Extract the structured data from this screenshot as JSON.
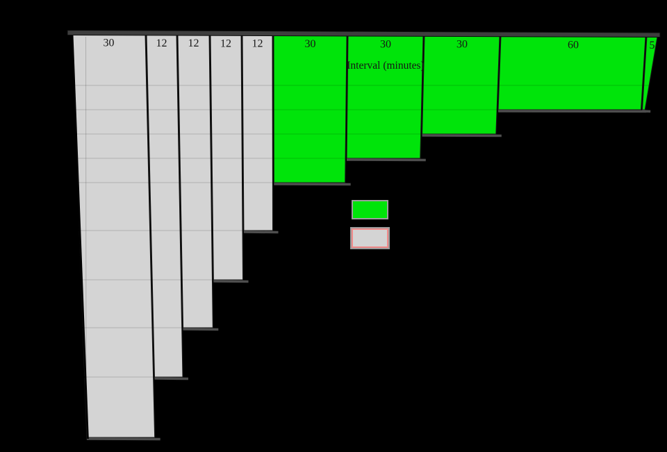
{
  "page": {
    "background_color": "#000000"
  },
  "chart": {
    "axis_label": "Interval (minutes)",
    "bars": [
      {
        "label": "30",
        "interval_minutes": 30,
        "height_units": 16,
        "color_group": "base"
      },
      {
        "label": "12",
        "interval_minutes": 12,
        "height_units": 14,
        "color_group": "base"
      },
      {
        "label": "12",
        "interval_minutes": 12,
        "height_units": 12,
        "color_group": "base"
      },
      {
        "label": "12",
        "interval_minutes": 12,
        "height_units": 10,
        "color_group": "base"
      },
      {
        "label": "12",
        "interval_minutes": 12,
        "height_units": 8,
        "color_group": "base"
      },
      {
        "label": "30",
        "interval_minutes": 30,
        "height_units": 6,
        "color_group": "highlight"
      },
      {
        "label": "30",
        "interval_minutes": 30,
        "height_units": 5,
        "color_group": "highlight"
      },
      {
        "label": "30",
        "interval_minutes": 30,
        "height_units": 4,
        "color_group": "highlight"
      },
      {
        "label": "60",
        "interval_minutes": 60,
        "height_units": 3,
        "color_group": "highlight"
      },
      {
        "label": "5",
        "interval_minutes": 5,
        "height_units": 3,
        "color_group": "highlight",
        "clipped_by_image_edge": true
      }
    ],
    "colors": {
      "highlight": "#00e40a",
      "base": "#d4d4d4",
      "frame": "#3e3e3e",
      "grid": "rgba(0,0,0,0.13)",
      "text": "#161616",
      "axis_line": "#000000",
      "shadow": "#4e4e4e",
      "legend_outline": "#9e9e9e",
      "legend_base_border": "#f08a8a",
      "background": "#000000"
    },
    "legend": {
      "items": [
        {
          "name": "highlight-swatch",
          "swatch_color": "#00e40a",
          "label": ""
        },
        {
          "name": "base-swatch",
          "swatch_color": "#d4d4d4",
          "label": ""
        }
      ],
      "position": "center"
    }
  },
  "chart_data": {
    "type": "bar",
    "subtype": "histogram-upside-down-photo",
    "title": "",
    "xlabel": "Interval (minutes)",
    "ylabel": "",
    "categories": [
      "30",
      "12",
      "12",
      "12",
      "12",
      "30",
      "30",
      "30",
      "60",
      "5"
    ],
    "bin_widths_minutes": [
      30,
      12,
      12,
      12,
      12,
      30,
      30,
      30,
      60,
      5
    ],
    "series": [
      {
        "name": "frequency-density-grid-units-estimated",
        "values": [
          16,
          14,
          12,
          10,
          8,
          6,
          5,
          4,
          3,
          3
        ]
      }
    ],
    "bar_color_groups": [
      "base",
      "base",
      "base",
      "base",
      "base",
      "highlight",
      "highlight",
      "highlight",
      "highlight",
      "highlight"
    ],
    "grid": true,
    "gridline_units": [
      2,
      3,
      4,
      5,
      6,
      8,
      10,
      12,
      14
    ],
    "legend_position": "center-of-image",
    "orientation": "bars-hang-from-top (image is inverted with keystone distortion)"
  }
}
